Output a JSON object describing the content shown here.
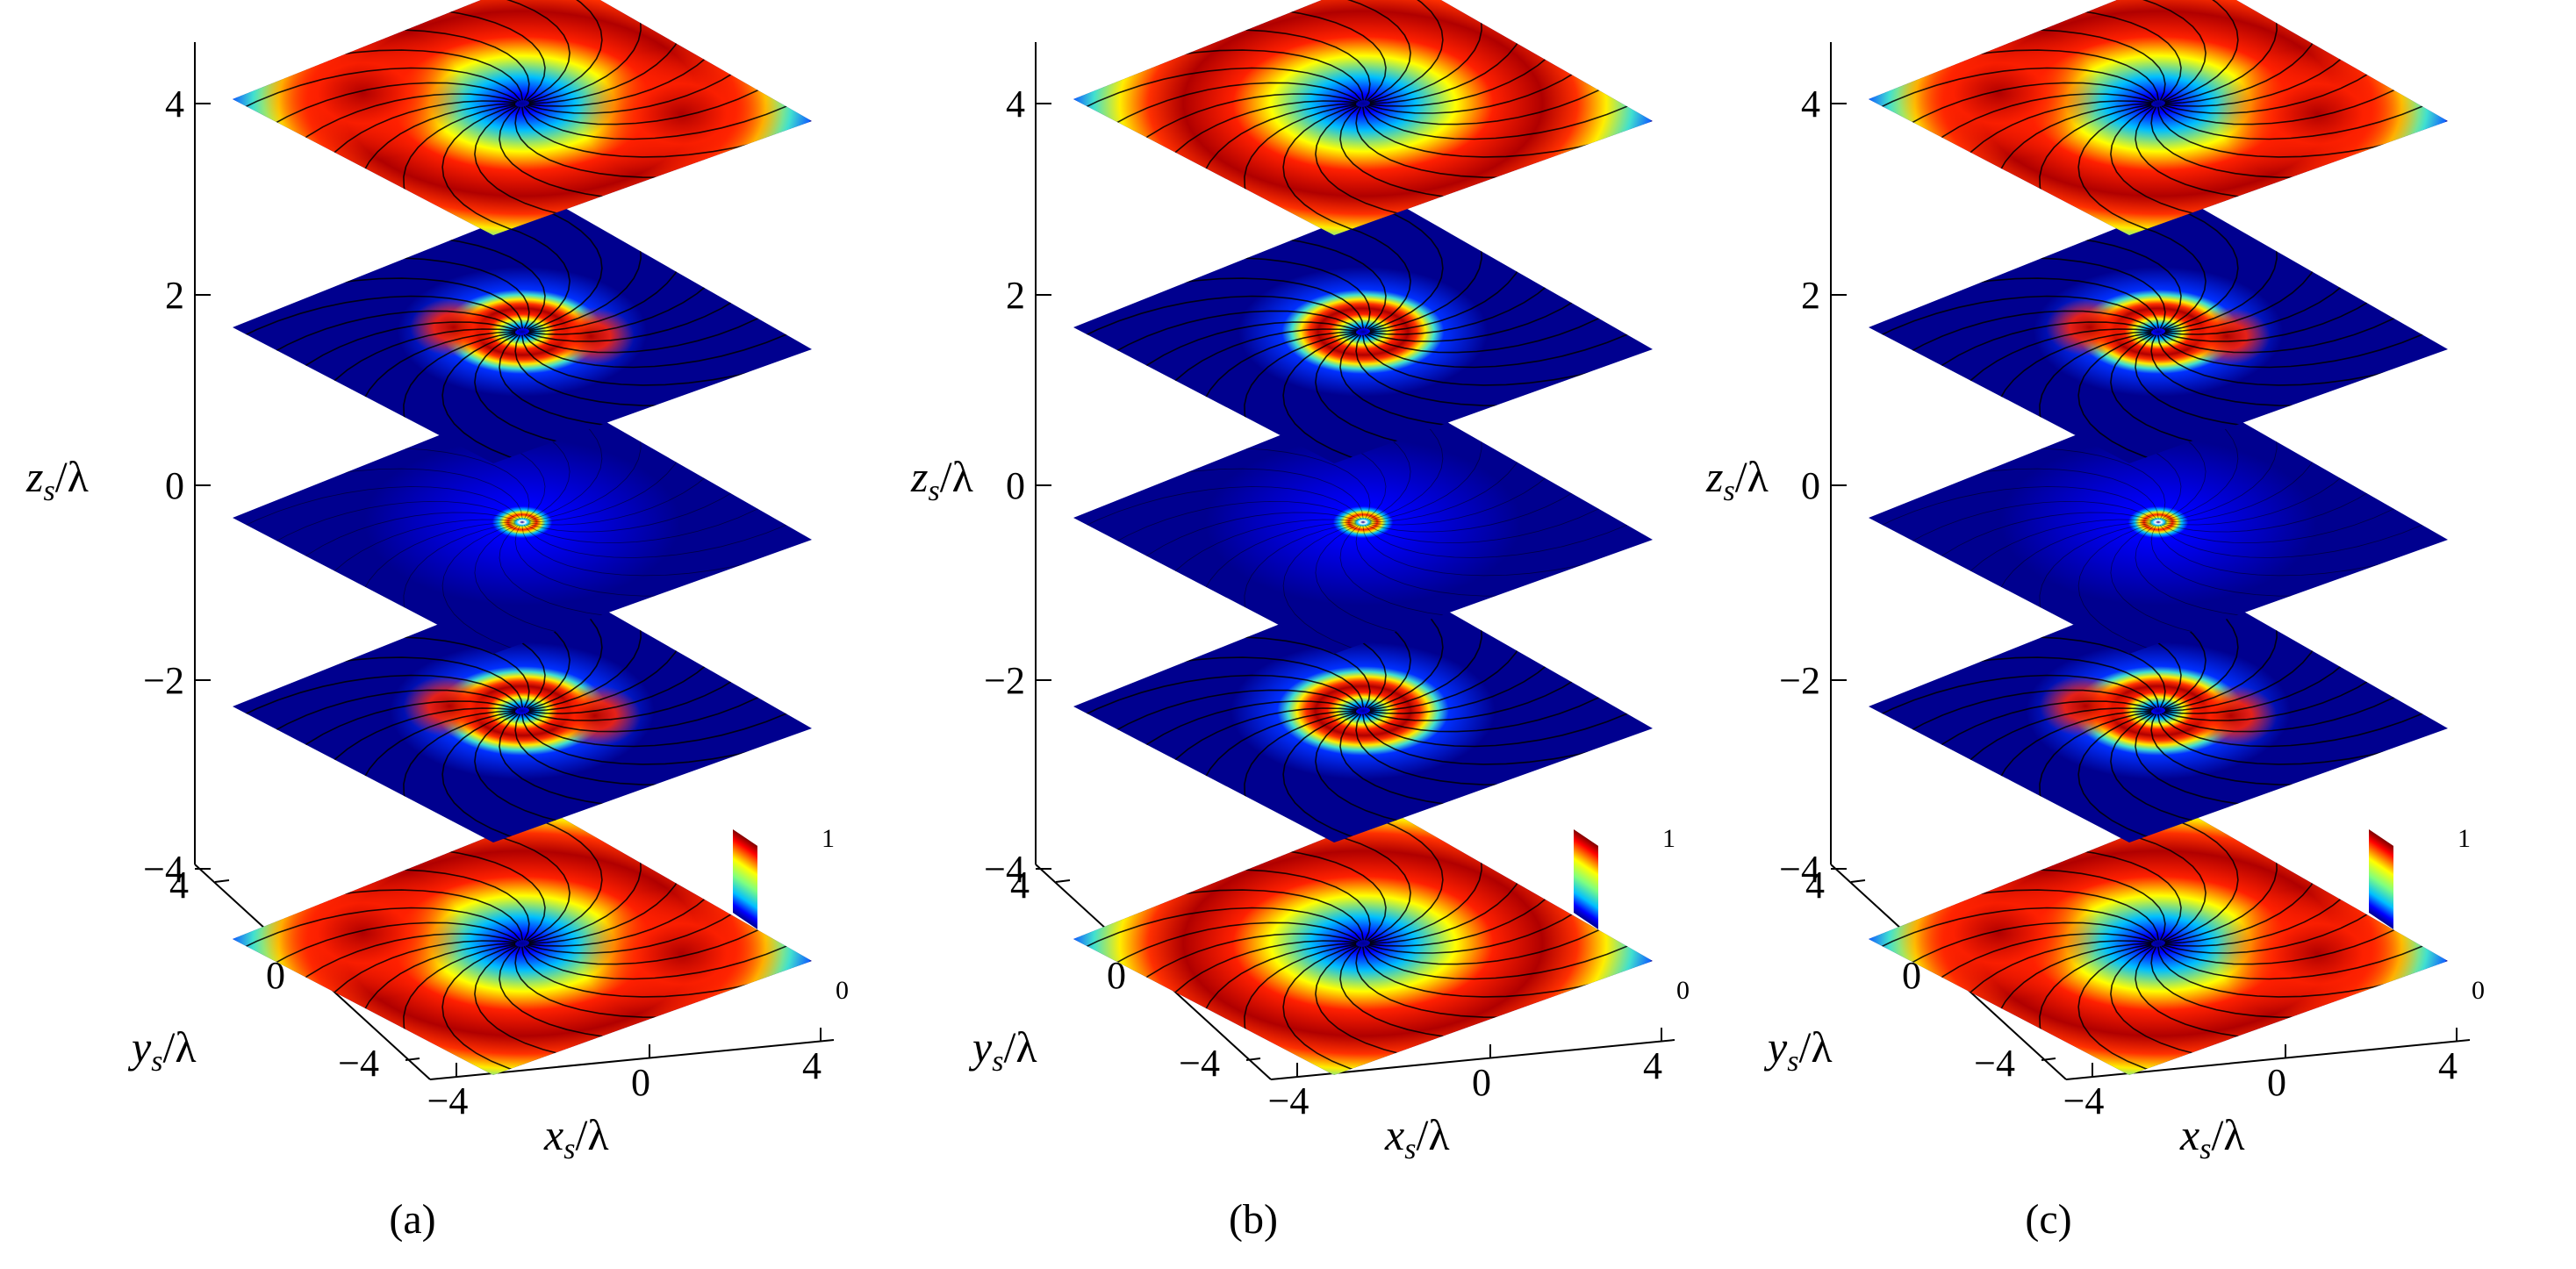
{
  "figure": {
    "panels": [
      {
        "caption": "(a)",
        "z_label_main": "z",
        "z_label_sub": "s",
        "z_label_tail": "/λ",
        "y_label_main": "y",
        "y_label_sub": "s",
        "y_label_tail": "/λ",
        "x_label_main": "x",
        "x_label_sub": "s",
        "x_label_tail": "/λ",
        "z_ticks": [
          "4",
          "2",
          "0",
          "−2",
          "−4"
        ],
        "y_ticks": [
          "4",
          "0",
          "−4"
        ],
        "x_ticks": [
          "−4",
          "0",
          "4"
        ],
        "colorbar_max": "1",
        "colorbar_min": "0",
        "slices": [
          {
            "z": 4,
            "pattern": "two-lobe",
            "ring_radius": 0.62
          },
          {
            "z": 2,
            "pattern": "two-lobe",
            "ring_radius": 0.34
          },
          {
            "z": 0,
            "pattern": "ring",
            "ring_radius": 0.12
          },
          {
            "z": -2,
            "pattern": "two-lobe",
            "ring_radius": 0.36
          },
          {
            "z": -4,
            "pattern": "two-lobe",
            "ring_radius": 0.62
          }
        ]
      },
      {
        "caption": "(b)",
        "z_label_main": "z",
        "z_label_sub": "s",
        "z_label_tail": "/λ",
        "y_label_main": "y",
        "y_label_sub": "s",
        "y_label_tail": "/λ",
        "x_label_main": "x",
        "x_label_sub": "s",
        "x_label_tail": "/λ",
        "z_ticks": [
          "4",
          "2",
          "0",
          "−2",
          "−4"
        ],
        "y_ticks": [
          "4",
          "0",
          "−4"
        ],
        "x_ticks": [
          "−4",
          "0",
          "4"
        ],
        "colorbar_max": "1",
        "colorbar_min": "0",
        "slices": [
          {
            "z": 4,
            "pattern": "ring",
            "ring_radius": 0.62
          },
          {
            "z": 2,
            "pattern": "ring",
            "ring_radius": 0.34
          },
          {
            "z": 0,
            "pattern": "ring",
            "ring_radius": 0.12
          },
          {
            "z": -2,
            "pattern": "ring",
            "ring_radius": 0.36
          },
          {
            "z": -4,
            "pattern": "ring",
            "ring_radius": 0.62
          }
        ]
      },
      {
        "caption": "(c)",
        "z_label_main": "z",
        "z_label_sub": "s",
        "z_label_tail": "/λ",
        "y_label_main": "y",
        "y_label_sub": "s",
        "y_label_tail": "/λ",
        "x_label_main": "x",
        "x_label_sub": "s",
        "x_label_tail": "/λ",
        "z_ticks": [
          "4",
          "2",
          "0",
          "−2",
          "−4"
        ],
        "y_ticks": [
          "4",
          "0",
          "−4"
        ],
        "x_ticks": [
          "−4",
          "0",
          "4"
        ],
        "colorbar_max": "1",
        "colorbar_min": "0",
        "slices": [
          {
            "z": 4,
            "pattern": "two-lobe",
            "ring_radius": 0.62
          },
          {
            "z": 2,
            "pattern": "two-lobe",
            "ring_radius": 0.34
          },
          {
            "z": 0,
            "pattern": "ring",
            "ring_radius": 0.12
          },
          {
            "z": -2,
            "pattern": "two-lobe",
            "ring_radius": 0.36
          },
          {
            "z": -4,
            "pattern": "two-lobe",
            "ring_radius": 0.62
          }
        ]
      }
    ],
    "colors": {
      "background_blue": "#00008f",
      "colormap": [
        "#00008f",
        "#0000ff",
        "#00bfff",
        "#7fff7f",
        "#ffff00",
        "#ff7f00",
        "#ff0000",
        "#7f0000"
      ],
      "streamline": "#000000"
    }
  }
}
